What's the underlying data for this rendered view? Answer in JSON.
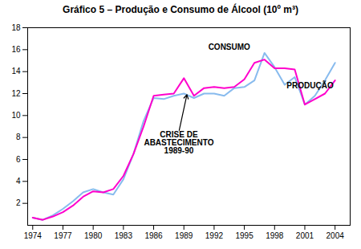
{
  "chart_data": {
    "type": "line",
    "title": "Gráfico 5 – Produção e Consumo de Álcool (10º m³)",
    "x": [
      1974,
      1975,
      1976,
      1977,
      1978,
      1979,
      1980,
      1981,
      1982,
      1983,
      1984,
      1985,
      1986,
      1987,
      1988,
      1989,
      1990,
      1991,
      1992,
      1993,
      1994,
      1995,
      1996,
      1997,
      1998,
      1999,
      2000,
      2001,
      2002,
      2003,
      2004
    ],
    "series": [
      {
        "name": "PRODUÇÃO",
        "color": "#88BBEE",
        "values": [
          0.7,
          0.5,
          0.9,
          1.5,
          2.2,
          3.0,
          3.3,
          3.0,
          2.8,
          4.2,
          6.5,
          9.5,
          11.6,
          11.5,
          11.8,
          12.0,
          11.6,
          12.0,
          12.0,
          11.8,
          12.5,
          12.6,
          13.2,
          15.7,
          14.4,
          12.8,
          13.5,
          11.0,
          11.8,
          13.2,
          14.8
        ]
      },
      {
        "name": "CONSUMO",
        "color": "#FF00CC",
        "values": [
          0.7,
          0.5,
          0.8,
          1.2,
          1.8,
          2.6,
          3.1,
          3.0,
          3.3,
          4.5,
          6.5,
          9.0,
          11.8,
          11.9,
          12.0,
          13.4,
          11.8,
          12.5,
          12.6,
          12.5,
          12.6,
          13.3,
          14.8,
          15.1,
          14.3,
          14.3,
          14.2,
          11.0,
          11.5,
          12.0,
          13.2
        ]
      }
    ],
    "xlim": [
      1973.5,
      2005.5
    ],
    "xticks": [
      1974,
      1977,
      1980,
      1983,
      1986,
      1989,
      1992,
      1995,
      1998,
      2001,
      2004
    ],
    "ylim": [
      0,
      18
    ],
    "yticks": [
      2,
      4,
      6,
      8,
      10,
      12,
      14,
      16,
      18
    ],
    "annotations": [
      {
        "text": "CONSUMO",
        "x": 1993.5,
        "y": 16.0
      },
      {
        "text": "PRODUÇÃO",
        "x": 1999.2,
        "y": 13.0
      },
      {
        "text": "CRISE DE\nABASTECIMENTO\n1989-90",
        "x": 1988.5,
        "y": 8.5,
        "arrow_x": 1989.3,
        "arrow_y": 11.9
      }
    ]
  }
}
